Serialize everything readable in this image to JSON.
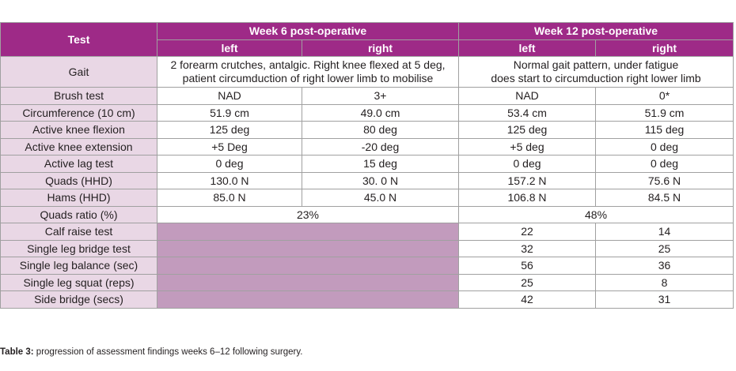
{
  "headers": {
    "test": "Test",
    "week6": "Week 6 post-operative",
    "week12": "Week 12 post-operative",
    "w6_left": "left",
    "w6_right": "right",
    "w12_left": "left",
    "w12_right": "right"
  },
  "gait": {
    "label": "Gait",
    "week6_line1": "2 forearm crutches, antalgic. Right knee flexed at 5 deg,",
    "week6_line2": "patient circumduction of right lower limb to mobilise",
    "week12_line1": "Normal gait pattern, under fatigue",
    "week12_line2": "does start to circumduction right lower limb"
  },
  "rows": [
    {
      "label": "Brush test",
      "w6l": "NAD",
      "w6r": "3+",
      "w12l": "NAD",
      "w12r": "0*"
    },
    {
      "label": "Circumference (10 cm)",
      "w6l": "51.9 cm",
      "w6r": "49.0 cm",
      "w12l": "53.4 cm",
      "w12r": "51.9 cm"
    },
    {
      "label": "Active knee flexion",
      "w6l": "125 deg",
      "w6r": "80 deg",
      "w12l": "125 deg",
      "w12r": "115 deg"
    },
    {
      "label": "Active knee extension",
      "w6l": "+5 Deg",
      "w6r": "-20 deg",
      "w12l": "+5 deg",
      "w12r": "0 deg"
    },
    {
      "label": "Active lag test",
      "w6l": "0 deg",
      "w6r": "15 deg",
      "w12l": "0 deg",
      "w12r": "0 deg"
    },
    {
      "label": "Quads (HHD)",
      "w6l": "130.0 N",
      "w6r": "30. 0 N",
      "w12l": "157.2 N",
      "w12r": "75.6 N"
    },
    {
      "label": "Hams (HHD)",
      "w6l": "85.0 N",
      "w6r": "45.0 N",
      "w12l": "106.8 N",
      "w12r": "84.5 N"
    }
  ],
  "ratio": {
    "label": "Quads ratio (%)",
    "week6": "23%",
    "week12": "48%"
  },
  "later_rows": [
    {
      "label": "Calf raise test",
      "w12l": "22",
      "w12r": "14"
    },
    {
      "label": "Single leg bridge test",
      "w12l": "32",
      "w12r": "25"
    },
    {
      "label": "Single leg balance (sec)",
      "w12l": "56",
      "w12r": "36"
    },
    {
      "label": "Single leg squat (reps)",
      "w12l": "25",
      "w12r": "8"
    },
    {
      "label": "Side bridge (secs)",
      "w12l": "42",
      "w12r": "31"
    }
  ],
  "caption": {
    "bold": "Table 3:",
    "text": " progression of assessment findings weeks 6–12 following surgery."
  },
  "colors": {
    "header_bg": "#9e2a87",
    "label_bg": "#e9d7e5",
    "empty_bg": "#c29bbd"
  }
}
